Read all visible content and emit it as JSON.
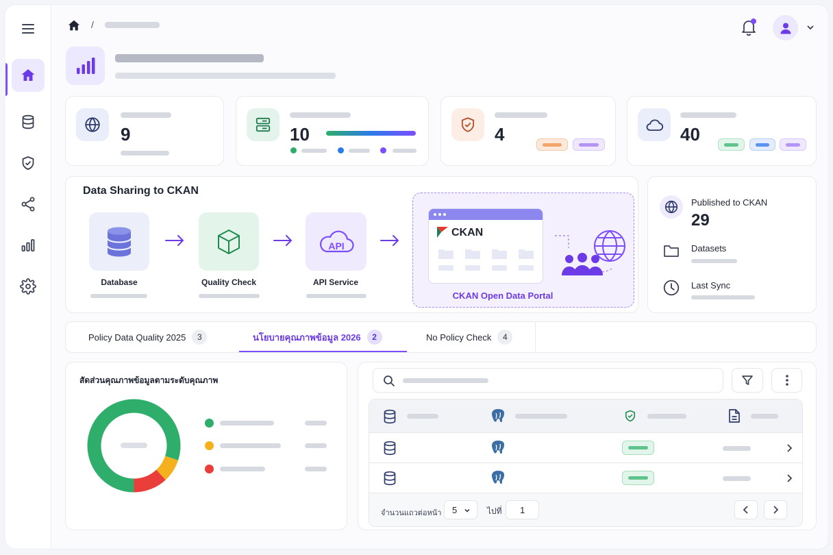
{
  "stats": [
    {
      "value": "9"
    },
    {
      "value": "10"
    },
    {
      "value": "4"
    },
    {
      "value": "40"
    }
  ],
  "pipeline": {
    "title": "Data Sharing to CKAN",
    "steps": [
      {
        "label": "Database",
        "icon": "database-icon"
      },
      {
        "label": "Quality Check",
        "icon": "cube-icon"
      },
      {
        "label": "API Service",
        "icon": "cloud-api-icon",
        "icon_text": "API"
      }
    ],
    "portal": {
      "brand": "CKAN",
      "label": "CKAN Open Data Portal"
    }
  },
  "summary": {
    "published_label": "Published to CKAN",
    "published_value": "29",
    "datasets_label": "Datasets",
    "last_sync_label": "Last Sync"
  },
  "tabs": [
    {
      "label": "Policy Data Quality 2025",
      "count": "3"
    },
    {
      "label": "นโยบายคุณภาพข้อมูล 2026",
      "count": "2"
    },
    {
      "label": "No Policy Check",
      "count": "4"
    }
  ],
  "donut": {
    "title": "สัดส่วนคุณภาพข้อมูลตามระดับคุณภาพ",
    "segments": [
      {
        "color": "#2fae6b",
        "fraction": 0.8
      },
      {
        "color": "#f5b01e",
        "fraction": 0.08
      },
      {
        "color": "#ea3e3a",
        "fraction": 0.12
      }
    ]
  },
  "pagination": {
    "rows_per_page_label": "จำนวนแถวต่อหน้า",
    "rows_per_page": "5",
    "goto_label": "ไปที่",
    "page": "1"
  },
  "colors": {
    "accent": "#7c4dff",
    "green": "#2fae6b",
    "orange": "#f5b01e",
    "red": "#ea3e3a"
  }
}
